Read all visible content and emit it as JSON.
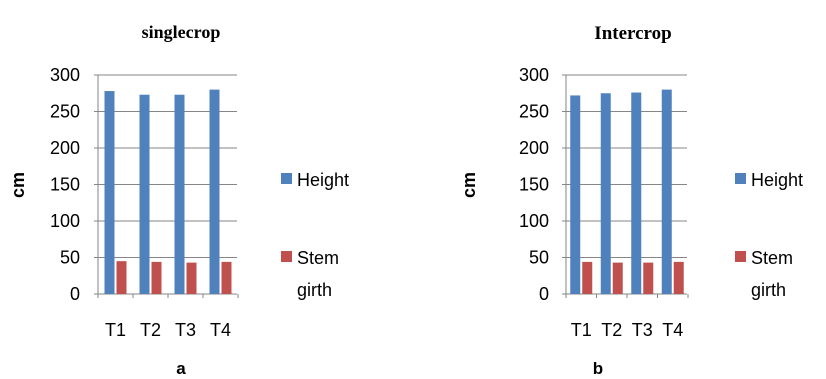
{
  "chart_data": [
    {
      "type": "bar",
      "title": "singlecrop",
      "ylabel": "cm",
      "xlabel": "",
      "categories": [
        "T1",
        "T2",
        "T3",
        "T4"
      ],
      "yticks": [
        "0",
        "50",
        "100",
        "150",
        "200",
        "250",
        "300"
      ],
      "ylim": [
        0,
        300
      ],
      "grid": true,
      "legend_position": "right",
      "series": [
        {
          "name": "Height",
          "color": "#4f81bd",
          "values": [
            278,
            273,
            273,
            280
          ]
        },
        {
          "name": "Stem girth",
          "color": "#c0504d",
          "values": [
            45,
            44,
            43,
            44
          ]
        }
      ],
      "legend_labels": [
        [
          "Height"
        ],
        [
          "Stem",
          "girth"
        ]
      ],
      "panel_label": "a"
    },
    {
      "type": "bar",
      "title": "Intercrop",
      "ylabel": "cm",
      "xlabel": "",
      "categories": [
        "T1",
        "T2",
        "T3",
        "T4"
      ],
      "yticks": [
        "0",
        "50",
        "100",
        "150",
        "200",
        "250",
        "300"
      ],
      "ylim": [
        0,
        300
      ],
      "grid": true,
      "legend_position": "right",
      "series": [
        {
          "name": "Height",
          "color": "#4f81bd",
          "values": [
            272,
            275,
            276,
            280
          ]
        },
        {
          "name": "Stem girth",
          "color": "#c0504d",
          "values": [
            44,
            43,
            43,
            44
          ]
        }
      ],
      "legend_labels": [
        [
          "Height"
        ],
        [
          "Stem",
          "girth"
        ]
      ],
      "panel_label": "b"
    }
  ]
}
